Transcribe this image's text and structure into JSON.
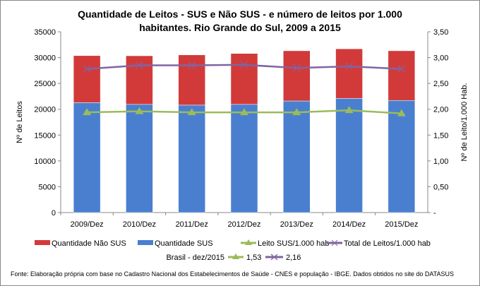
{
  "chart_data": {
    "type": "bar",
    "title_line1": "Quantidade de Leitos - SUS e Não SUS - e número de leitos por 1.000",
    "title_line2": "habitantes. Rio Grande do Sul, 2009 a 2015",
    "ylabel": "Nº de Leitos",
    "y2label": "Nº de Leito/1.000 Hab.",
    "categories": [
      "2009/Dez",
      "2010/Dez",
      "2011/Dez",
      "2012/Dez",
      "2013/Dez",
      "2014/Dez",
      "2015/Dez"
    ],
    "ylim": [
      0,
      35000
    ],
    "yticks": [
      "0",
      "5000",
      "10000",
      "15000",
      "20000",
      "25000",
      "30000",
      "35000"
    ],
    "y2lim": [
      0,
      3.5
    ],
    "y2ticks": [
      "-",
      "0,50",
      "1,00",
      "1,50",
      "2,00",
      "2,50",
      "3,00",
      "3,50"
    ],
    "grid": false,
    "legend_position": "bottom",
    "series": [
      {
        "name": "Quantidade SUS",
        "kind": "stacked-bar",
        "color": "#4a7fd0",
        "values": [
          21270,
          20940,
          20800,
          20940,
          21600,
          22100,
          21700
        ]
      },
      {
        "name": "Quantidade Não SUS",
        "kind": "stacked-bar",
        "color": "#d23a3a",
        "values": [
          9110,
          9410,
          9720,
          9860,
          9720,
          9600,
          9620
        ]
      },
      {
        "name": "Leito SUS/1.000 hab",
        "kind": "line",
        "axis": "right",
        "marker": "triangle",
        "color": "#9bbb59",
        "values": [
          1.94,
          1.96,
          1.94,
          1.94,
          1.94,
          1.98,
          1.92
        ]
      },
      {
        "name": "Total de Leitos/1.000 hab",
        "kind": "line",
        "axis": "right",
        "marker": "x",
        "color": "#8064a2",
        "values": [
          2.78,
          2.85,
          2.85,
          2.86,
          2.8,
          2.83,
          2.78
        ]
      }
    ],
    "legend_order": [
      "Quantidade Não SUS",
      "Quantidade SUS",
      "Leito SUS/1.000 hab",
      "Total de Leitos/1.000 hab"
    ],
    "annotation": {
      "label": "Brasil -  dez/2015",
      "leito_sus": "1,53",
      "total": "2,16"
    },
    "source": "Fonte: Elaboração própria com base no  Cadastro Nacional dos Estabelecimentos de Saúde - CNES e população - IBGE. Dados obtidos no site do DATASUS"
  }
}
